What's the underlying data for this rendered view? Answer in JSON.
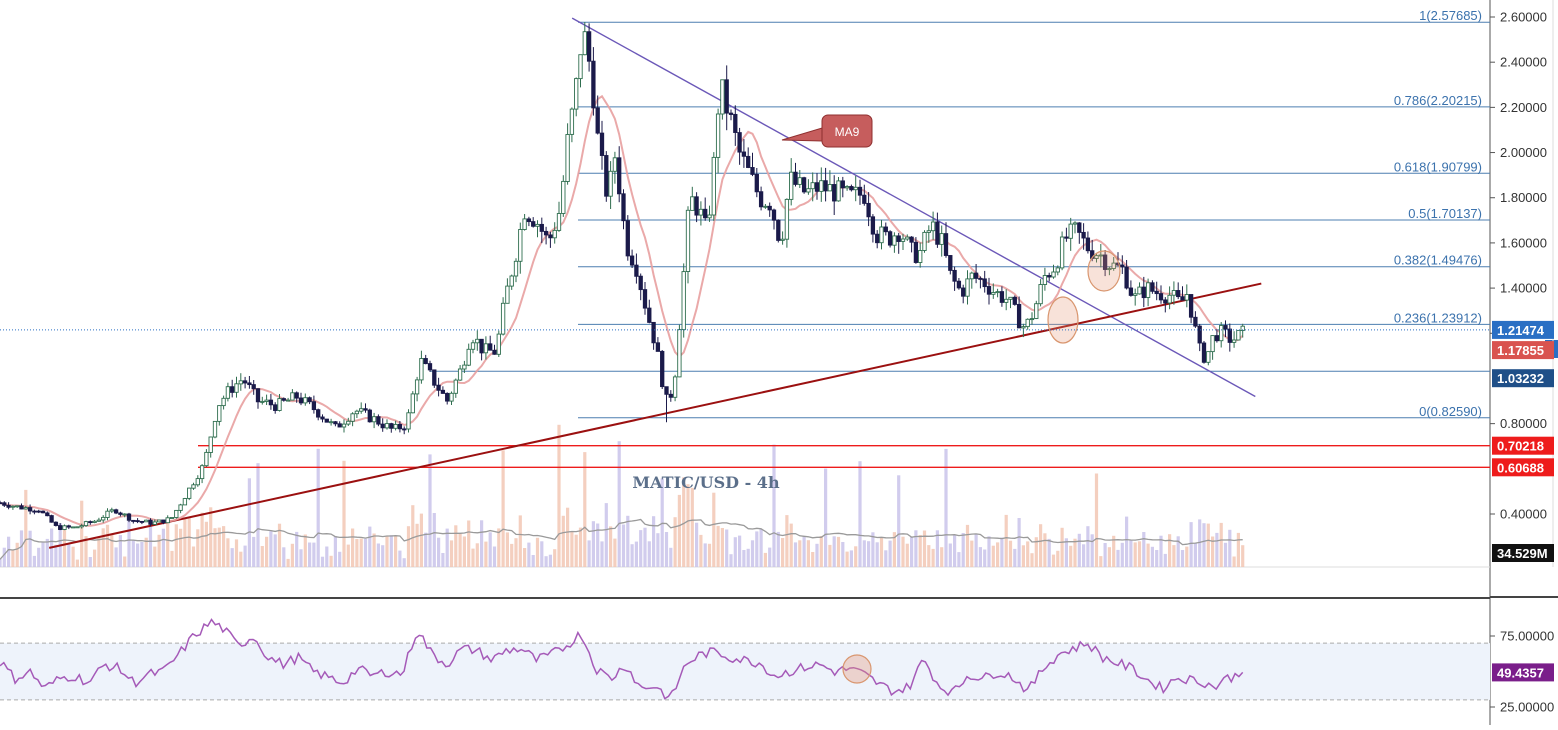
{
  "chart_data": {
    "type": "candlestick",
    "title": "MATIC/USD - 4h",
    "price_axis": {
      "ylim": [
        0.2,
        2.65
      ],
      "ticks": [
        "2.60000",
        "2.40000",
        "2.20000",
        "2.00000",
        "1.80000",
        "1.60000",
        "1.40000",
        "1.20000",
        "0.80000",
        "0.40000"
      ]
    },
    "colors": {
      "background": "#ffffff",
      "candle_up": "#2f6e4f",
      "candle_down": "#1b1a4a",
      "ma": "#e8a0a0",
      "fib_line": "#4d7fb0",
      "fib_text": "#3b72ad",
      "trend_down": "#6b58b8",
      "trend_up": "#9b1010",
      "support": "#ee1c1c",
      "rsi": "#a55ab8",
      "rsi_band": "#eef3fb",
      "volume_up": "#f2c7b4",
      "volume_down": "#c9c3ea",
      "volume_ma": "#9a9a9a",
      "current_price_bg": "#2a6fc4",
      "ma_price_bg": "#d9534f",
      "prev_price_bg": "#1f4f88",
      "level_bg": "#ee1c1c",
      "volume_label_bg": "#111111"
    },
    "fibonacci": [
      {
        "label": "1(2.57685)",
        "value": 2.57685
      },
      {
        "label": "0.786(2.20215)",
        "value": 2.20215
      },
      {
        "label": "0.618(1.90799)",
        "value": 1.90799
      },
      {
        "label": "0.5(1.70137)",
        "value": 1.70137
      },
      {
        "label": "0.382(1.49476)",
        "value": 1.49476
      },
      {
        "label": "0.236(1.23912)",
        "value": 1.23912
      },
      {
        "label": "0(0.82590)",
        "value": 0.8259
      }
    ],
    "support_levels": [
      {
        "label": "0.70218",
        "value": 0.70218
      },
      {
        "label": "0.60688",
        "value": 0.60688
      }
    ],
    "price_labels": {
      "current": {
        "text": "1.21474",
        "value": 1.21474
      },
      "ma": {
        "text": "1.17855",
        "value": 1.17855
      },
      "prev": {
        "text": "1.03232",
        "value": 1.03232
      }
    },
    "extra_level": 1.0323,
    "annotation": {
      "text": "MA9"
    },
    "volume_label": "34.529M",
    "trendlines": {
      "descending": {
        "from": [
          0.384,
          2.595
        ],
        "to": [
          0.8425,
          0.92
        ]
      },
      "ascending": {
        "from": [
          0.033,
          0.25
        ],
        "to": [
          0.8465,
          1.42
        ]
      }
    },
    "close_anchors": [
      [
        0.0,
        0.45
      ],
      [
        0.013,
        0.43
      ],
      [
        0.026,
        0.42
      ],
      [
        0.038,
        0.34
      ],
      [
        0.05,
        0.34
      ],
      [
        0.064,
        0.37
      ],
      [
        0.077,
        0.42
      ],
      [
        0.09,
        0.37
      ],
      [
        0.103,
        0.36
      ],
      [
        0.115,
        0.38
      ],
      [
        0.126,
        0.5
      ],
      [
        0.137,
        0.62
      ],
      [
        0.146,
        0.88
      ],
      [
        0.154,
        0.95
      ],
      [
        0.163,
        1.0
      ],
      [
        0.173,
        0.9
      ],
      [
        0.186,
        0.88
      ],
      [
        0.199,
        0.92
      ],
      [
        0.212,
        0.86
      ],
      [
        0.225,
        0.78
      ],
      [
        0.238,
        0.86
      ],
      [
        0.251,
        0.82
      ],
      [
        0.264,
        0.77
      ],
      [
        0.273,
        0.8
      ],
      [
        0.282,
        1.08
      ],
      [
        0.29,
        1.0
      ],
      [
        0.3,
        0.9
      ],
      [
        0.31,
        1.05
      ],
      [
        0.316,
        1.2
      ],
      [
        0.325,
        1.12
      ],
      [
        0.333,
        1.12
      ],
      [
        0.339,
        1.35
      ],
      [
        0.346,
        1.55
      ],
      [
        0.352,
        1.75
      ],
      [
        0.36,
        1.7
      ],
      [
        0.368,
        1.6
      ],
      [
        0.376,
        1.75
      ],
      [
        0.381,
        2.05
      ],
      [
        0.386,
        2.25
      ],
      [
        0.391,
        2.55
      ],
      [
        0.397,
        2.35
      ],
      [
        0.402,
        2.0
      ],
      [
        0.408,
        1.8
      ],
      [
        0.413,
        2.0
      ],
      [
        0.42,
        1.6
      ],
      [
        0.427,
        1.5
      ],
      [
        0.434,
        1.3
      ],
      [
        0.44,
        1.15
      ],
      [
        0.447,
        0.9
      ],
      [
        0.452,
        0.95
      ],
      [
        0.458,
        1.4
      ],
      [
        0.463,
        1.8
      ],
      [
        0.469,
        1.75
      ],
      [
        0.474,
        1.65
      ],
      [
        0.478,
        1.85
      ],
      [
        0.483,
        2.3
      ],
      [
        0.49,
        2.15
      ],
      [
        0.496,
        2.0
      ],
      [
        0.503,
        1.9
      ],
      [
        0.51,
        1.8
      ],
      [
        0.517,
        1.78
      ],
      [
        0.524,
        1.6
      ],
      [
        0.53,
        1.88
      ],
      [
        0.541,
        1.82
      ],
      [
        0.55,
        1.85
      ],
      [
        0.56,
        1.83
      ],
      [
        0.57,
        1.8
      ],
      [
        0.58,
        1.82
      ],
      [
        0.588,
        1.64
      ],
      [
        0.596,
        1.62
      ],
      [
        0.604,
        1.66
      ],
      [
        0.611,
        1.56
      ],
      [
        0.617,
        1.55
      ],
      [
        0.625,
        1.68
      ],
      [
        0.632,
        1.6
      ],
      [
        0.638,
        1.45
      ],
      [
        0.645,
        1.38
      ],
      [
        0.652,
        1.45
      ],
      [
        0.66,
        1.43
      ],
      [
        0.668,
        1.38
      ],
      [
        0.676,
        1.35
      ],
      [
        0.682,
        1.28
      ],
      [
        0.688,
        1.22
      ],
      [
        0.694,
        1.3
      ],
      [
        0.701,
        1.45
      ],
      [
        0.708,
        1.5
      ],
      [
        0.715,
        1.62
      ],
      [
        0.722,
        1.65
      ],
      [
        0.73,
        1.58
      ],
      [
        0.738,
        1.55
      ],
      [
        0.746,
        1.5
      ],
      [
        0.754,
        1.48
      ],
      [
        0.761,
        1.35
      ],
      [
        0.769,
        1.4
      ],
      [
        0.777,
        1.38
      ],
      [
        0.785,
        1.37
      ],
      [
        0.792,
        1.33
      ],
      [
        0.797,
        1.38
      ],
      [
        0.802,
        1.22
      ],
      [
        0.806,
        1.1
      ],
      [
        0.81,
        1.1
      ],
      [
        0.815,
        1.2
      ],
      [
        0.82,
        1.2
      ],
      [
        0.827,
        1.17
      ],
      [
        0.834,
        1.2
      ]
    ],
    "close_anchors_units": "[fraction of time span, price]",
    "ma_period": 9,
    "rsi_panel": {
      "ylim": [
        22,
        93
      ],
      "ticks": [
        "75.00000",
        "25.00000"
      ],
      "bands": [
        70,
        30
      ],
      "current_label": "49.4357",
      "anchors": [
        [
          0.0,
          57
        ],
        [
          0.01,
          45
        ],
        [
          0.02,
          50
        ],
        [
          0.03,
          38
        ],
        [
          0.04,
          45
        ],
        [
          0.05,
          47
        ],
        [
          0.06,
          42
        ],
        [
          0.07,
          55
        ],
        [
          0.08,
          52
        ],
        [
          0.09,
          42
        ],
        [
          0.1,
          48
        ],
        [
          0.11,
          50
        ],
        [
          0.12,
          62
        ],
        [
          0.13,
          75
        ],
        [
          0.142,
          85
        ],
        [
          0.15,
          80
        ],
        [
          0.16,
          68
        ],
        [
          0.17,
          75
        ],
        [
          0.18,
          60
        ],
        [
          0.19,
          55
        ],
        [
          0.2,
          60
        ],
        [
          0.21,
          50
        ],
        [
          0.22,
          46
        ],
        [
          0.23,
          42
        ],
        [
          0.24,
          52
        ],
        [
          0.25,
          47
        ],
        [
          0.26,
          50
        ],
        [
          0.27,
          48
        ],
        [
          0.28,
          80
        ],
        [
          0.29,
          62
        ],
        [
          0.3,
          55
        ],
        [
          0.31,
          66
        ],
        [
          0.32,
          65
        ],
        [
          0.33,
          58
        ],
        [
          0.34,
          65
        ],
        [
          0.35,
          66
        ],
        [
          0.36,
          58
        ],
        [
          0.37,
          62
        ],
        [
          0.38,
          68
        ],
        [
          0.39,
          77
        ],
        [
          0.4,
          52
        ],
        [
          0.41,
          45
        ],
        [
          0.42,
          55
        ],
        [
          0.43,
          38
        ],
        [
          0.44,
          40
        ],
        [
          0.45,
          30
        ],
        [
          0.46,
          55
        ],
        [
          0.47,
          62
        ],
        [
          0.48,
          64
        ],
        [
          0.49,
          60
        ],
        [
          0.5,
          58
        ],
        [
          0.51,
          56
        ],
        [
          0.52,
          47
        ],
        [
          0.53,
          50
        ],
        [
          0.54,
          53
        ],
        [
          0.55,
          55
        ],
        [
          0.56,
          50
        ],
        [
          0.57,
          52
        ],
        [
          0.58,
          48
        ],
        [
          0.59,
          41
        ],
        [
          0.6,
          36
        ],
        [
          0.61,
          39
        ],
        [
          0.62,
          59
        ],
        [
          0.63,
          40
        ],
        [
          0.64,
          35
        ],
        [
          0.65,
          48
        ],
        [
          0.66,
          45
        ],
        [
          0.67,
          50
        ],
        [
          0.68,
          46
        ],
        [
          0.69,
          36
        ],
        [
          0.7,
          52
        ],
        [
          0.71,
          62
        ],
        [
          0.72,
          66
        ],
        [
          0.73,
          70
        ],
        [
          0.74,
          60
        ],
        [
          0.75,
          56
        ],
        [
          0.76,
          52
        ],
        [
          0.77,
          44
        ],
        [
          0.78,
          38
        ],
        [
          0.79,
          46
        ],
        [
          0.8,
          44
        ],
        [
          0.81,
          42
        ],
        [
          0.815,
          38
        ],
        [
          0.82,
          44
        ],
        [
          0.83,
          47
        ],
        [
          0.834,
          49.4
        ]
      ]
    }
  }
}
